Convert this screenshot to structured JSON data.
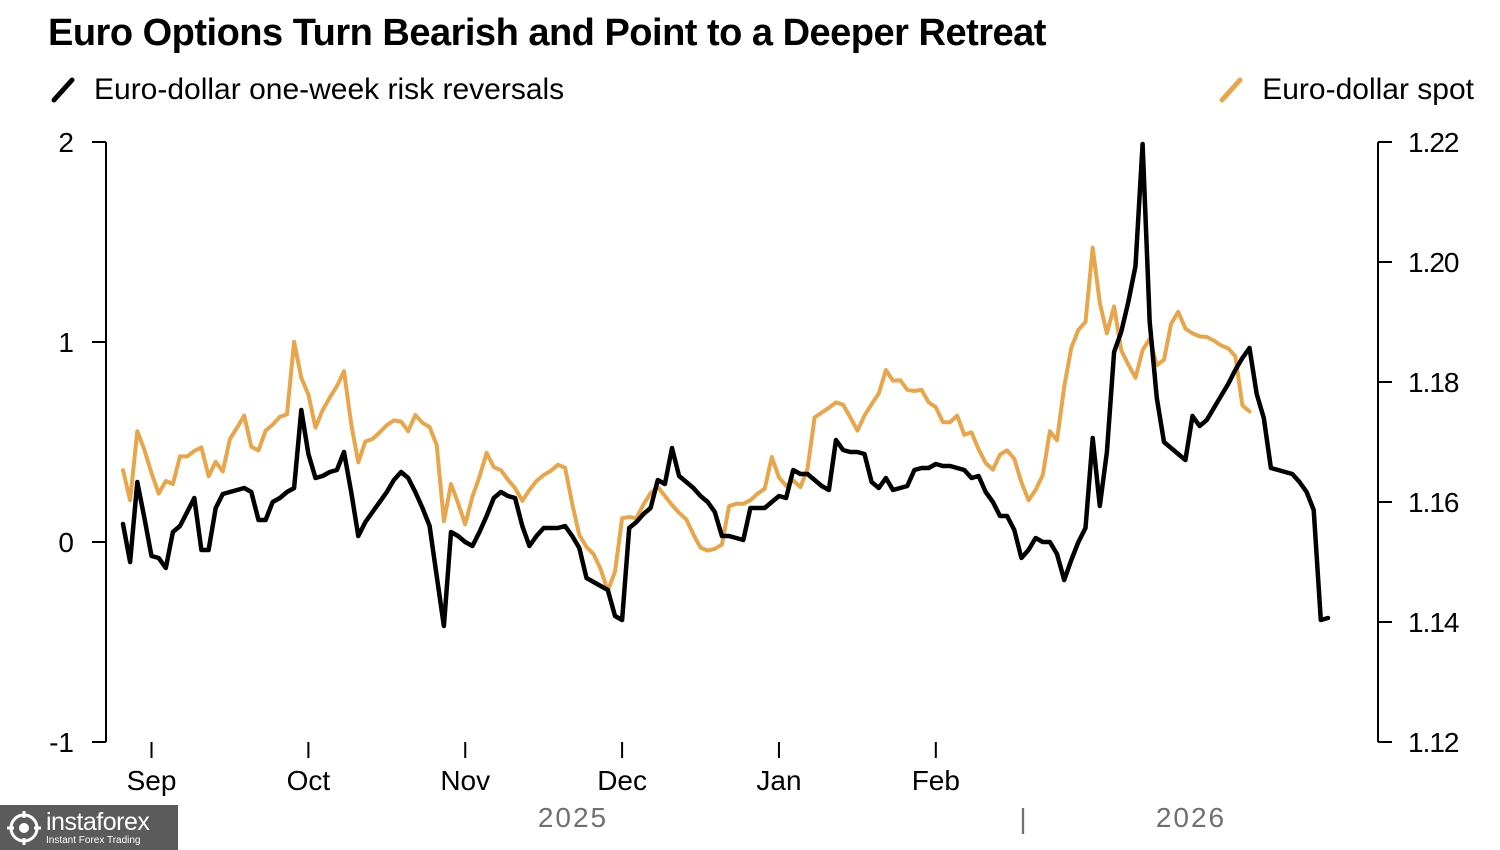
{
  "chart_data": {
    "type": "line",
    "title": "Euro Options Turn Bearish and Point to a Deeper Retreat",
    "x_tick_labels": [
      "Sep",
      "Oct",
      "Nov",
      "Dec",
      "Jan",
      "Feb"
    ],
    "year_labels": [
      "2025",
      "2026"
    ],
    "year_separator": "|",
    "left_axis": {
      "range": [
        -1,
        2
      ],
      "ticks": [
        -1,
        0,
        1,
        2
      ],
      "tick_labels": [
        "-1",
        "0",
        "1",
        "2"
      ]
    },
    "right_axis": {
      "range": [
        1.12,
        1.22
      ],
      "ticks": [
        1.12,
        1.14,
        1.16,
        1.18,
        1.2,
        1.22
      ],
      "tick_labels": [
        "1.12",
        "1.14",
        "1.16",
        "1.18",
        "1.20",
        "1.22"
      ]
    },
    "x_start_index": 1,
    "month_tick_indices": [
      5,
      27,
      49,
      71,
      93,
      115
    ],
    "series": [
      {
        "name": "Euro-dollar one-week risk reversals",
        "axis": "left",
        "color": "#000000",
        "values": [
          0.09,
          -0.1,
          0.3,
          0.12,
          -0.07,
          -0.08,
          -0.13,
          0.05,
          0.08,
          0.15,
          0.22,
          -0.04,
          -0.04,
          0.17,
          0.24,
          0.25,
          0.26,
          0.27,
          0.25,
          0.11,
          0.11,
          0.2,
          0.22,
          0.25,
          0.27,
          0.66,
          0.44,
          0.32,
          0.33,
          0.35,
          0.36,
          0.45,
          0.25,
          0.03,
          0.1,
          0.15,
          0.2,
          0.25,
          0.31,
          0.35,
          0.32,
          0.25,
          0.17,
          0.08,
          -0.17,
          -0.42,
          0.05,
          0.03,
          0.0,
          -0.02,
          0.05,
          0.13,
          0.22,
          0.25,
          0.23,
          0.22,
          0.08,
          -0.02,
          0.03,
          0.07,
          0.07,
          0.07,
          0.08,
          0.03,
          -0.03,
          -0.18,
          -0.2,
          -0.22,
          -0.24,
          -0.37,
          -0.39,
          0.07,
          0.1,
          0.14,
          0.17,
          0.31,
          0.29,
          0.47,
          0.33,
          0.3,
          0.27,
          0.23,
          0.2,
          0.15,
          0.03,
          0.03,
          0.02,
          0.01,
          0.17,
          0.17,
          0.17,
          0.2,
          0.23,
          0.22,
          0.36,
          0.34,
          0.34,
          0.31,
          0.28,
          0.26,
          0.51,
          0.46,
          0.45,
          0.45,
          0.44,
          0.3,
          0.27,
          0.32,
          0.26,
          0.27,
          0.28,
          0.36,
          0.37,
          0.37,
          0.39,
          0.38,
          0.38,
          0.37,
          0.36,
          0.32,
          0.33,
          0.25,
          0.2,
          0.13,
          0.13,
          0.06,
          -0.08,
          -0.04,
          0.02,
          0.0,
          0.0,
          -0.06,
          -0.19,
          -0.09,
          0.0,
          0.07,
          0.52,
          0.18,
          0.45,
          0.95,
          1.05,
          1.2,
          1.38,
          1.99,
          1.1,
          0.72,
          0.5,
          0.47,
          0.44,
          0.41,
          0.63,
          0.58,
          0.61,
          0.67,
          0.73,
          0.79,
          0.86,
          0.92,
          0.97,
          0.74,
          0.62,
          0.37,
          0.36,
          0.35,
          0.34,
          0.3,
          0.25,
          0.16,
          -0.39,
          -0.38
        ]
      },
      {
        "name": "Euro-dollar spot",
        "axis": "right",
        "color": "#e9a54a",
        "values": [
          1.1653,
          1.1603,
          1.1718,
          1.1687,
          1.1648,
          1.1614,
          1.1635,
          1.163,
          1.1676,
          1.1676,
          1.1685,
          1.1691,
          1.1643,
          1.1667,
          1.1651,
          1.1705,
          1.1724,
          1.1744,
          1.1692,
          1.1686,
          1.1719,
          1.1729,
          1.1742,
          1.1746,
          1.1867,
          1.1807,
          1.1779,
          1.1724,
          1.1753,
          1.1774,
          1.1793,
          1.1818,
          1.173,
          1.1666,
          1.1701,
          1.1705,
          1.1716,
          1.1728,
          1.1736,
          1.1734,
          1.1718,
          1.1745,
          1.1732,
          1.1725,
          1.1695,
          1.1568,
          1.163,
          1.1598,
          1.1563,
          1.1609,
          1.1642,
          1.1682,
          1.1658,
          1.1653,
          1.1637,
          1.1623,
          1.1602,
          1.162,
          1.1635,
          1.1645,
          1.1652,
          1.1662,
          1.1657,
          1.1597,
          1.1545,
          1.1525,
          1.1513,
          1.1488,
          1.1452,
          1.1484,
          1.1573,
          1.1575,
          1.1573,
          1.1596,
          1.1615,
          1.1625,
          1.161,
          1.1595,
          1.1582,
          1.1571,
          1.1546,
          1.1524,
          1.1519,
          1.1522,
          1.1529,
          1.1593,
          1.1597,
          1.1597,
          1.1603,
          1.1614,
          1.1622,
          1.1675,
          1.1641,
          1.1627,
          1.1636,
          1.1625,
          1.1655,
          1.1741,
          1.1749,
          1.1757,
          1.1766,
          1.1762,
          1.1741,
          1.1719,
          1.1744,
          1.1763,
          1.1781,
          1.182,
          1.1802,
          1.1803,
          1.1787,
          1.1785,
          1.1787,
          1.1766,
          1.1758,
          1.1733,
          1.1733,
          1.1744,
          1.1712,
          1.1716,
          1.1688,
          1.1665,
          1.1654,
          1.1679,
          1.1686,
          1.1672,
          1.1633,
          1.1603,
          1.162,
          1.1645,
          1.1718,
          1.1703,
          1.1792,
          1.1857,
          1.1887,
          1.19,
          1.2024,
          1.1932,
          1.1881,
          1.1926,
          1.1853,
          1.1829,
          1.1807,
          1.1853,
          1.1872,
          1.1828,
          1.1837,
          1.1897,
          1.1917,
          1.1889,
          1.1881,
          1.1876,
          1.1875,
          1.1869,
          1.1861,
          1.1856,
          1.1843,
          1.1761,
          1.1751
        ]
      }
    ]
  }
}
